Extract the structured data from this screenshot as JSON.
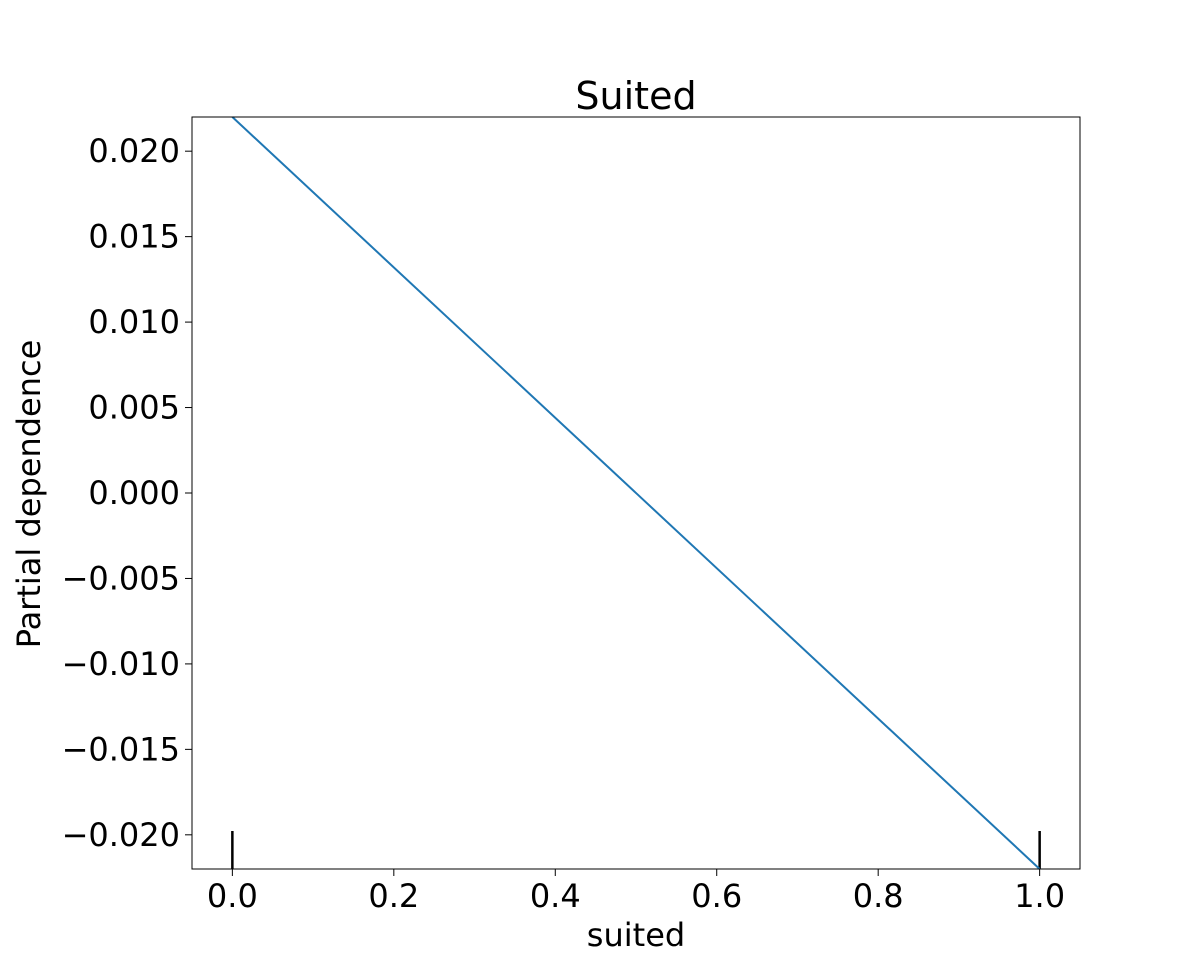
{
  "chart_data": {
    "type": "line",
    "title": "Suited",
    "xlabel": "suited",
    "ylabel": "Partial dependence",
    "xlim": [
      -0.05,
      1.05
    ],
    "ylim": [
      -0.022,
      0.022
    ],
    "xticks": [
      0.0,
      0.2,
      0.4,
      0.6,
      0.8,
      1.0
    ],
    "xtick_labels": [
      "0.0",
      "0.2",
      "0.4",
      "0.6",
      "0.8",
      "1.0"
    ],
    "yticks": [
      0.02,
      0.015,
      0.01,
      0.005,
      0.0,
      -0.005,
      -0.01,
      -0.015,
      -0.02
    ],
    "ytick_labels": [
      "0.020",
      "0.015",
      "0.010",
      "0.005",
      "0.000",
      "−0.005",
      "−0.010",
      "−0.015",
      "−0.020"
    ],
    "grid": false,
    "line_color": "#1f77b4",
    "series": [
      {
        "x": [
          0.0,
          1.0
        ],
        "y": [
          0.022,
          -0.022
        ]
      }
    ],
    "rug": {
      "x": [
        0.0,
        1.0
      ],
      "color": "#000000"
    }
  }
}
